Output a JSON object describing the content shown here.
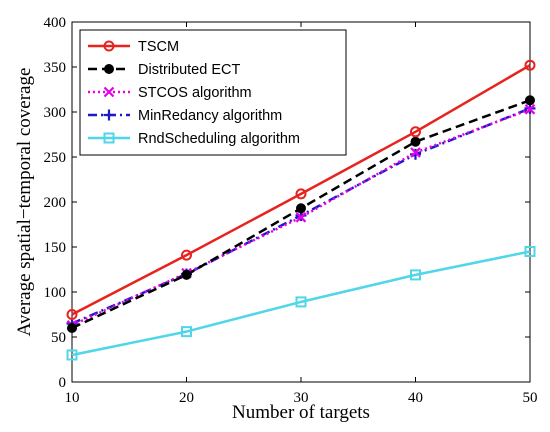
{
  "chart_data": {
    "type": "line",
    "title": "",
    "xlabel": "Number of targets",
    "ylabel": "Average spatial−temporal coverage",
    "xlim": [
      10,
      50
    ],
    "ylim": [
      0,
      400
    ],
    "x_ticks": [
      "10",
      "20",
      "30",
      "40",
      "50"
    ],
    "y_ticks": [
      "0",
      "50",
      "100",
      "150",
      "200",
      "250",
      "300",
      "350",
      "400"
    ],
    "grid": false,
    "legend_position": "top-left",
    "x": [
      10,
      20,
      30,
      40,
      50
    ],
    "series": [
      {
        "name": "TSCM",
        "values": [
          75,
          141,
          209,
          278,
          352
        ],
        "color": "#e8231f",
        "line_style": "solid",
        "marker": "circle-open"
      },
      {
        "name": "Distributed ECT",
        "values": [
          60,
          119,
          193,
          267,
          313
        ],
        "color": "#000000",
        "line_style": "dashed",
        "marker": "circle-filled"
      },
      {
        "name": "STCOS algorithm",
        "values": [
          63,
          121,
          183,
          255,
          303
        ],
        "color": "#e600e6",
        "line_style": "dotted",
        "marker": "x"
      },
      {
        "name": "MinRedancy algorithm",
        "values": [
          65,
          120,
          185,
          253,
          304
        ],
        "color": "#1a1acc",
        "line_style": "dashdot",
        "marker": "plus"
      },
      {
        "name": "RndScheduling algorithm",
        "values": [
          30,
          56,
          89,
          119,
          145
        ],
        "color": "#4fd6e8",
        "line_style": "solid",
        "marker": "square"
      }
    ]
  }
}
